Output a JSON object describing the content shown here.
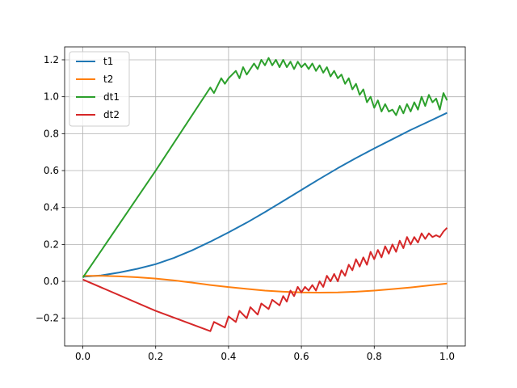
{
  "chart_data": {
    "type": "line",
    "title": "",
    "xlabel": "",
    "ylabel": "",
    "xlim": [
      -0.05,
      1.05
    ],
    "ylim": [
      -0.35,
      1.27
    ],
    "xticks": [
      0.0,
      0.2,
      0.4,
      0.6,
      0.8,
      1.0
    ],
    "xtick_labels": [
      "0.0",
      "0.2",
      "0.4",
      "0.6",
      "0.8",
      "1.0"
    ],
    "yticks": [
      -0.2,
      0.0,
      0.2,
      0.4,
      0.6,
      0.8,
      1.0,
      1.2
    ],
    "ytick_labels": [
      "−0.2",
      "0.0",
      "0.2",
      "0.4",
      "0.6",
      "0.8",
      "1.0",
      "1.2"
    ],
    "grid": true,
    "legend_position": "top-left",
    "series": [
      {
        "name": "t1",
        "color": "#1f77b4",
        "x": [
          0.0,
          0.05,
          0.1,
          0.15,
          0.2,
          0.25,
          0.3,
          0.35,
          0.4,
          0.45,
          0.5,
          0.55,
          0.6,
          0.65,
          0.7,
          0.75,
          0.8,
          0.85,
          0.9,
          0.95,
          1.0
        ],
        "y": [
          0.025,
          0.032,
          0.048,
          0.068,
          0.093,
          0.127,
          0.168,
          0.215,
          0.265,
          0.318,
          0.375,
          0.435,
          0.495,
          0.555,
          0.613,
          0.668,
          0.72,
          0.77,
          0.82,
          0.866,
          0.913
        ]
      },
      {
        "name": "t2",
        "color": "#ff7f0e",
        "x": [
          0.0,
          0.05,
          0.1,
          0.15,
          0.2,
          0.25,
          0.3,
          0.35,
          0.4,
          0.45,
          0.5,
          0.55,
          0.6,
          0.65,
          0.7,
          0.75,
          0.8,
          0.85,
          0.9,
          0.95,
          1.0
        ],
        "y": [
          0.03,
          0.03,
          0.027,
          0.022,
          0.015,
          0.005,
          -0.007,
          -0.02,
          -0.031,
          -0.041,
          -0.05,
          -0.056,
          -0.06,
          -0.061,
          -0.06,
          -0.056,
          -0.05,
          -0.042,
          -0.033,
          -0.022,
          -0.012
        ]
      },
      {
        "name": "dt1",
        "color": "#2ca02c",
        "x": [
          0.0,
          0.2,
          0.35,
          0.36,
          0.38,
          0.39,
          0.4,
          0.42,
          0.43,
          0.44,
          0.45,
          0.47,
          0.48,
          0.49,
          0.5,
          0.51,
          0.52,
          0.53,
          0.54,
          0.55,
          0.56,
          0.57,
          0.58,
          0.59,
          0.6,
          0.61,
          0.62,
          0.63,
          0.64,
          0.65,
          0.66,
          0.67,
          0.68,
          0.69,
          0.7,
          0.71,
          0.72,
          0.73,
          0.74,
          0.75,
          0.76,
          0.77,
          0.78,
          0.79,
          0.8,
          0.81,
          0.82,
          0.83,
          0.84,
          0.85,
          0.86,
          0.87,
          0.88,
          0.89,
          0.9,
          0.91,
          0.92,
          0.93,
          0.94,
          0.95,
          0.96,
          0.97,
          0.98,
          0.99,
          1.0
        ],
        "y": [
          0.02,
          0.6,
          1.05,
          1.02,
          1.1,
          1.07,
          1.1,
          1.14,
          1.1,
          1.16,
          1.12,
          1.18,
          1.15,
          1.2,
          1.17,
          1.21,
          1.17,
          1.2,
          1.16,
          1.2,
          1.16,
          1.19,
          1.15,
          1.19,
          1.16,
          1.18,
          1.15,
          1.18,
          1.14,
          1.17,
          1.13,
          1.16,
          1.11,
          1.14,
          1.1,
          1.12,
          1.07,
          1.1,
          1.04,
          1.07,
          1.01,
          1.04,
          0.97,
          1.0,
          0.94,
          0.98,
          0.92,
          0.96,
          0.92,
          0.93,
          0.9,
          0.95,
          0.91,
          0.96,
          0.92,
          0.97,
          0.93,
          1.0,
          0.95,
          1.01,
          0.97,
          0.99,
          0.93,
          1.02,
          0.98
        ]
      },
      {
        "name": "dt2",
        "color": "#d62728",
        "x": [
          0.0,
          0.2,
          0.35,
          0.36,
          0.39,
          0.4,
          0.42,
          0.43,
          0.45,
          0.46,
          0.48,
          0.49,
          0.51,
          0.52,
          0.54,
          0.55,
          0.56,
          0.57,
          0.58,
          0.59,
          0.6,
          0.61,
          0.62,
          0.63,
          0.64,
          0.65,
          0.66,
          0.67,
          0.68,
          0.69,
          0.7,
          0.71,
          0.72,
          0.73,
          0.74,
          0.75,
          0.76,
          0.77,
          0.78,
          0.79,
          0.8,
          0.81,
          0.82,
          0.83,
          0.84,
          0.85,
          0.86,
          0.87,
          0.88,
          0.89,
          0.9,
          0.91,
          0.92,
          0.93,
          0.94,
          0.95,
          0.96,
          0.97,
          0.98,
          0.99,
          1.0
        ],
        "y": [
          0.01,
          -0.16,
          -0.27,
          -0.22,
          -0.25,
          -0.19,
          -0.22,
          -0.16,
          -0.2,
          -0.14,
          -0.18,
          -0.12,
          -0.15,
          -0.1,
          -0.13,
          -0.08,
          -0.11,
          -0.05,
          -0.08,
          -0.03,
          -0.06,
          -0.03,
          -0.05,
          -0.02,
          -0.05,
          0.0,
          -0.03,
          0.03,
          0.0,
          0.04,
          0.0,
          0.06,
          0.03,
          0.09,
          0.06,
          0.12,
          0.08,
          0.13,
          0.09,
          0.16,
          0.12,
          0.17,
          0.13,
          0.19,
          0.15,
          0.2,
          0.16,
          0.22,
          0.18,
          0.24,
          0.2,
          0.24,
          0.21,
          0.26,
          0.23,
          0.26,
          0.24,
          0.25,
          0.24,
          0.27,
          0.29
        ]
      }
    ]
  }
}
